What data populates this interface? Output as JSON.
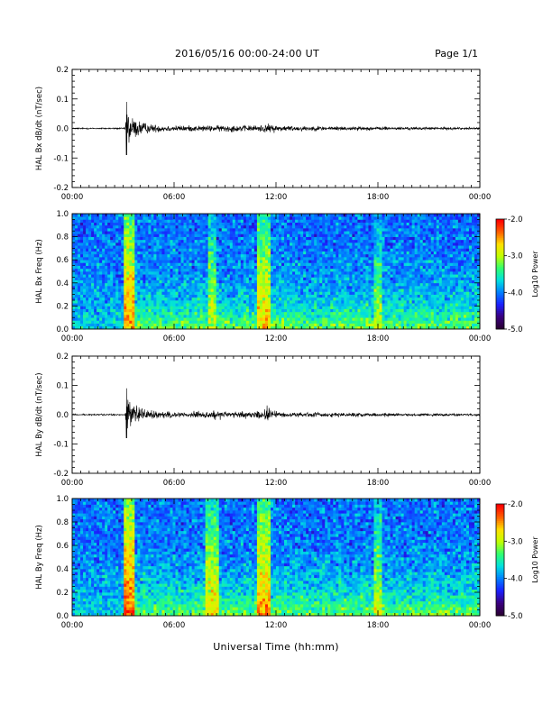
{
  "header": {
    "title": "2016/05/16  00:00-24:00 UT",
    "page": "Page 1/1"
  },
  "xlabel": "Universal Time (hh:mm)",
  "colors": {
    "background": "#ffffff",
    "trace": "#000000",
    "colormap": [
      "#2a0032",
      "#3a0080",
      "#1a20ff",
      "#0080ff",
      "#00e0e0",
      "#30ff70",
      "#c0ff00",
      "#ffe000",
      "#ff6000",
      "#ff0000"
    ]
  },
  "chart_data": [
    {
      "type": "line",
      "name": "bx-dbdt",
      "ylabel": "HAL Bx dB/dt (nT/sec)",
      "xlim": [
        0,
        24
      ],
      "ylim": [
        -0.2,
        0.2
      ],
      "xticks": [
        "00:00",
        "06:00",
        "12:00",
        "18:00",
        "00:00"
      ],
      "yticks": [
        "-0.2",
        "-0.1",
        "0.0",
        "0.1",
        "0.2"
      ],
      "ytick_values": [
        -0.2,
        -0.1,
        0.0,
        0.1,
        0.2
      ],
      "event_time": 3.2,
      "peak_pos": 0.09,
      "peak_neg": -0.09,
      "activity": [
        [
          0,
          0.002
        ],
        [
          3.1,
          0.002
        ],
        [
          3.2,
          0.06
        ],
        [
          3.6,
          0.03
        ],
        [
          4.5,
          0.012
        ],
        [
          6,
          0.008
        ],
        [
          8.5,
          0.008
        ],
        [
          9,
          0.01
        ],
        [
          10.5,
          0.008
        ],
        [
          11.5,
          0.012
        ],
        [
          12.5,
          0.008
        ],
        [
          15,
          0.006
        ],
        [
          18,
          0.005
        ],
        [
          20,
          0.004
        ],
        [
          24,
          0.003
        ]
      ]
    },
    {
      "type": "heatmap",
      "name": "bx-freq",
      "ylabel": "HAL Bx Freq (Hz)",
      "xlim": [
        0,
        24
      ],
      "ylim": [
        0.0,
        1.0
      ],
      "xticks": [
        "00:00",
        "06:00",
        "12:00",
        "18:00",
        "00:00"
      ],
      "yticks": [
        "0.0",
        "0.2",
        "0.4",
        "0.6",
        "0.8",
        "1.0"
      ],
      "ytick_values": [
        0.0,
        0.2,
        0.4,
        0.6,
        0.8,
        1.0
      ],
      "colorbar_label": "Log10 Power",
      "colorbar_ticks": [
        "-2.0",
        "-3.0",
        "-4.0",
        "-5.0"
      ],
      "colorbar_range": [
        -5.0,
        -2.0
      ],
      "enhancements": [
        {
          "t_start": 3.1,
          "t_end": 3.6,
          "level": -2.6
        },
        {
          "t_start": 8.0,
          "t_end": 8.5,
          "level": -3.1
        },
        {
          "t_start": 10.9,
          "t_end": 11.6,
          "level": -2.8
        },
        {
          "t_start": 17.7,
          "t_end": 18.3,
          "level": -3.2
        }
      ]
    },
    {
      "type": "line",
      "name": "by-dbdt",
      "ylabel": "HAL By dB/dt (nT/sec)",
      "xlim": [
        0,
        24
      ],
      "ylim": [
        -0.2,
        0.2
      ],
      "xticks": [
        "00:00",
        "06:00",
        "12:00",
        "18:00",
        "00:00"
      ],
      "yticks": [
        "-0.2",
        "-0.1",
        "0.0",
        "0.1",
        "0.2"
      ],
      "ytick_values": [
        -0.2,
        -0.1,
        0.0,
        0.1,
        0.2
      ],
      "event_time": 3.2,
      "peak_pos": 0.09,
      "peak_neg": -0.08,
      "activity": [
        [
          0,
          0.002
        ],
        [
          3.1,
          0.002
        ],
        [
          3.2,
          0.055
        ],
        [
          3.6,
          0.03
        ],
        [
          4.5,
          0.012
        ],
        [
          6,
          0.008
        ],
        [
          8.0,
          0.009
        ],
        [
          8.5,
          0.015
        ],
        [
          9,
          0.009
        ],
        [
          11.0,
          0.01
        ],
        [
          11.5,
          0.02
        ],
        [
          12.2,
          0.008
        ],
        [
          15,
          0.006
        ],
        [
          18,
          0.005
        ],
        [
          20,
          0.004
        ],
        [
          24,
          0.003
        ]
      ]
    },
    {
      "type": "heatmap",
      "name": "by-freq",
      "ylabel": "HAL By Freq (Hz)",
      "xlim": [
        0,
        24
      ],
      "ylim": [
        0.0,
        1.0
      ],
      "xticks": [
        "00:00",
        "06:00",
        "12:00",
        "18:00",
        "00:00"
      ],
      "yticks": [
        "0.0",
        "0.2",
        "0.4",
        "0.6",
        "0.8",
        "1.0"
      ],
      "ytick_values": [
        0.0,
        0.2,
        0.4,
        0.6,
        0.8,
        1.0
      ],
      "colorbar_label": "Log10 Power",
      "colorbar_ticks": [
        "-2.0",
        "-3.0",
        "-4.0",
        "-5.0"
      ],
      "colorbar_range": [
        -5.0,
        -2.0
      ],
      "enhancements": [
        {
          "t_start": 3.1,
          "t_end": 3.6,
          "level": -2.5
        },
        {
          "t_start": 7.9,
          "t_end": 8.6,
          "level": -2.9
        },
        {
          "t_start": 10.9,
          "t_end": 11.6,
          "level": -2.7
        },
        {
          "t_start": 17.7,
          "t_end": 18.3,
          "level": -3.1
        }
      ]
    }
  ]
}
